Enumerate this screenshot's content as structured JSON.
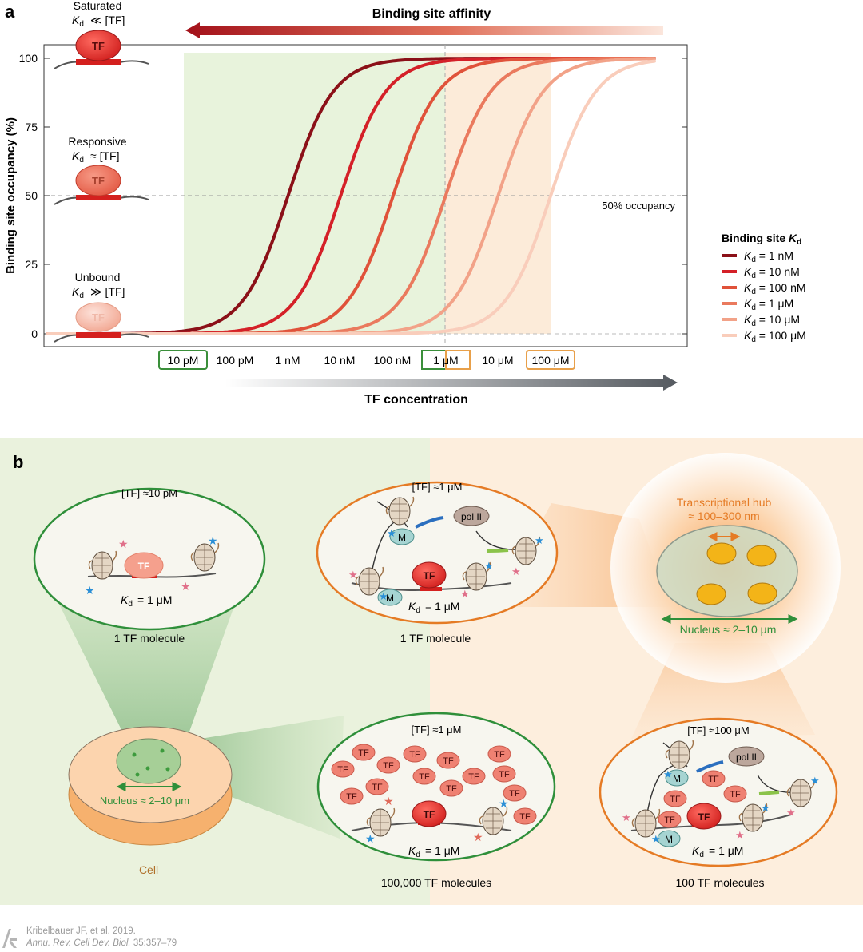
{
  "panel_a": {
    "label": "a",
    "affinity_label": "Binding site affinity",
    "tf_concentration_label": "TF concentration",
    "occupancy_50_label": "50% occupancy",
    "states": [
      {
        "name": "Saturated",
        "relation": "≪ [TF]",
        "tf": "TF"
      },
      {
        "name": "Responsive",
        "relation": "≈ [TF]",
        "tf": "TF"
      },
      {
        "name": "Unbound",
        "relation": "≫ [TF]",
        "tf": "TF"
      }
    ],
    "legend_title_prefix": "Binding site ",
    "legend_entries": [
      "= 1 nM",
      "= 10 nM",
      "= 100 nM",
      "= 1 μM",
      "= 10 μM",
      "= 100 μM"
    ],
    "colors": {
      "green_region": "#e8f3dc",
      "orange_region": "#fcebd9",
      "green_box": "#3a8f3a",
      "orange_box": "#e8a04a",
      "axis": "#333333"
    }
  },
  "chart_data": {
    "type": "line",
    "xscale": "log",
    "xlabel": "TF concentration",
    "ylabel": "Binding site occupancy (%)",
    "x_tick_labels": [
      "10 pM",
      "100 pM",
      "1 nM",
      "10 nM",
      "100 nM",
      "1 μM",
      "10 μM",
      "100 μM"
    ],
    "x_ticks_molar": [
      1e-11,
      1e-10,
      1e-09,
      1e-08,
      1e-07,
      1e-06,
      1e-05,
      0.0001
    ],
    "boxed_ticks": {
      "green": [
        "10 pM",
        "1 μM"
      ],
      "orange": [
        "1 μM",
        "100 μM"
      ]
    },
    "y_ticks": [
      0,
      25,
      50,
      75,
      100
    ],
    "ylim": [
      0,
      100
    ],
    "reference_line_y": 50,
    "shaded_ranges": [
      {
        "color": "green",
        "from": "10 pM",
        "to": "1 μM"
      },
      {
        "color": "orange",
        "from": "1 μM",
        "to": "100 μM"
      }
    ],
    "series": [
      {
        "name": "Kd = 1 nM",
        "kd_molar": 1e-09,
        "color": "#8b1018"
      },
      {
        "name": "Kd = 10 nM",
        "kd_molar": 1e-08,
        "color": "#d42028"
      },
      {
        "name": "Kd = 100 nM",
        "kd_molar": 1e-07,
        "color": "#e0523a"
      },
      {
        "name": "Kd = 1 μM",
        "kd_molar": 1e-06,
        "color": "#ea7a5e"
      },
      {
        "name": "Kd = 10 μM",
        "kd_molar": 1e-05,
        "color": "#f2a288"
      },
      {
        "name": "Kd = 100 μM",
        "kd_molar": 0.0001,
        "color": "#f9cdbb"
      }
    ]
  },
  "panel_b": {
    "label": "b",
    "scenarios": [
      {
        "conc": "[TF] ≈10 pM",
        "kd_value": "= 1 μM",
        "caption": "1 TF molecule",
        "tf": "TF"
      },
      {
        "conc": "[TF] ≈1 μM",
        "kd_value": "= 1 μM",
        "caption": "1 TF molecule",
        "tf": "TF",
        "pol": "pol II",
        "m": "M"
      },
      {
        "conc": "[TF] ≈1 μM",
        "kd_value": "= 1 μM",
        "caption": "100,000 TF molecules",
        "tf": "TF"
      },
      {
        "conc": "[TF] ≈100 μM",
        "kd_value": "= 1 μM",
        "caption": "100 TF molecules",
        "tf": "TF",
        "pol": "pol II",
        "m": "M"
      }
    ],
    "hub_title": "Transcriptional hub",
    "hub_size": "≈ 100–300 nm",
    "nucleus_label": "Nucleus ≈ 2–10 μm",
    "cell_label": "Cell",
    "colors": {
      "green_bg": "#eaf2dd",
      "orange_bg": "#fdeedd",
      "green": "#2f8f3a",
      "orange": "#e57b25",
      "tf_red": "#e83c34"
    }
  },
  "credit": {
    "line1": "Kribelbauer JF, et al. 2019.",
    "journal": "Annu. Rev. Cell Dev. Biol.",
    "pages": "35:357–79"
  }
}
